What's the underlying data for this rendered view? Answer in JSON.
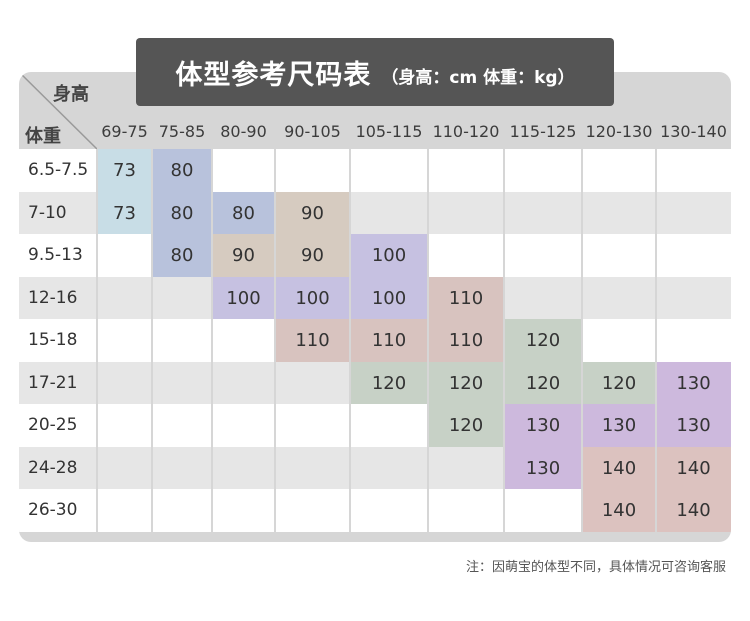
{
  "title": {
    "main": "体型参考尺码表",
    "sub": "（身高：cm  体重：kg）"
  },
  "corner": {
    "height_label": "身高",
    "weight_label": "体重"
  },
  "columns": [
    "69-75",
    "75-85",
    "80-90",
    "90-105",
    "105-115",
    "110-120",
    "115-125",
    "120-130",
    "130-140"
  ],
  "rows": [
    {
      "weight": "6.5-7.5",
      "cells": [
        "73",
        "80",
        "",
        "",
        "",
        "",
        "",
        "",
        ""
      ]
    },
    {
      "weight": "7-10",
      "cells": [
        "73",
        "80",
        "80",
        "90",
        "",
        "",
        "",
        "",
        ""
      ]
    },
    {
      "weight": "9.5-13",
      "cells": [
        "",
        "80",
        "90",
        "90",
        "100",
        "",
        "",
        "",
        ""
      ]
    },
    {
      "weight": "12-16",
      "cells": [
        "",
        "",
        "100",
        "100",
        "100",
        "110",
        "",
        "",
        ""
      ]
    },
    {
      "weight": "15-18",
      "cells": [
        "",
        "",
        "",
        "110",
        "110",
        "110",
        "120",
        "",
        ""
      ]
    },
    {
      "weight": "17-21",
      "cells": [
        "",
        "",
        "",
        "",
        "120",
        "120",
        "120",
        "120",
        "130"
      ]
    },
    {
      "weight": "20-25",
      "cells": [
        "",
        "",
        "",
        "",
        "",
        "120",
        "130",
        "130",
        "130"
      ]
    },
    {
      "weight": "24-28",
      "cells": [
        "",
        "",
        "",
        "",
        "",
        "",
        "130",
        "140",
        "140"
      ]
    },
    {
      "weight": "26-30",
      "cells": [
        "",
        "",
        "",
        "",
        "",
        "",
        "",
        "140",
        "140"
      ]
    }
  ],
  "size_colors": {
    "73": "#c8dde6",
    "80": "#b8c2dc",
    "90": "#d6cbc0",
    "100": "#c6c1e1",
    "110": "#d8c3bf",
    "120": "#c7d1c6",
    "130": "#cdb9dd",
    "140": "#dcc2bf"
  },
  "row_colors": {
    "odd": "#ffffff",
    "even": "#e6e6e6"
  },
  "note": "注：因萌宝的体型不同，具体情况可咨询客服"
}
